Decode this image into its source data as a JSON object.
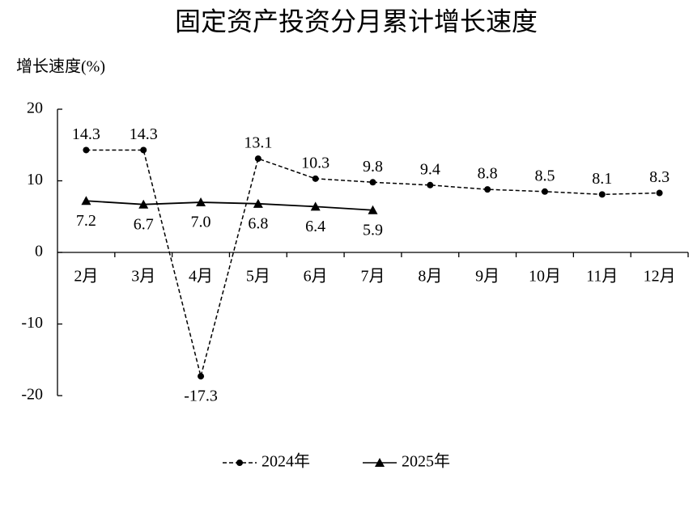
{
  "chart_data": {
    "type": "line",
    "title": "固定资产投资分月累计增长速度",
    "y_label": "增长速度(%)",
    "categories": [
      "2月",
      "3月",
      "4月",
      "5月",
      "6月",
      "7月",
      "8月",
      "9月",
      "10月",
      "11月",
      "12月"
    ],
    "series": [
      {
        "name": "2024年",
        "color": "#000000",
        "marker": "circle",
        "dashed": true,
        "values": [
          14.3,
          14.3,
          -17.3,
          13.1,
          10.3,
          9.8,
          9.4,
          8.8,
          8.5,
          8.1,
          8.3
        ],
        "value_labels": [
          "14.3",
          "14.3",
          "-17.3",
          "13.1",
          "10.3",
          "9.8",
          "9.4",
          "8.8",
          "8.5",
          "8.1",
          "8.3"
        ]
      },
      {
        "name": "2025年",
        "color": "#000000",
        "marker": "triangle",
        "dashed": false,
        "values": [
          7.2,
          6.7,
          7.0,
          6.8,
          6.4,
          5.9,
          null,
          null,
          null,
          null,
          null
        ],
        "value_labels": [
          "7.2",
          "6.7",
          "7.0",
          "6.8",
          "6.4",
          "5.9",
          null,
          null,
          null,
          null,
          null
        ]
      }
    ],
    "ylim": [
      -20,
      20
    ],
    "yticks": [
      -20,
      -10,
      0,
      10,
      20
    ],
    "grid": false,
    "legend": "bottom"
  }
}
